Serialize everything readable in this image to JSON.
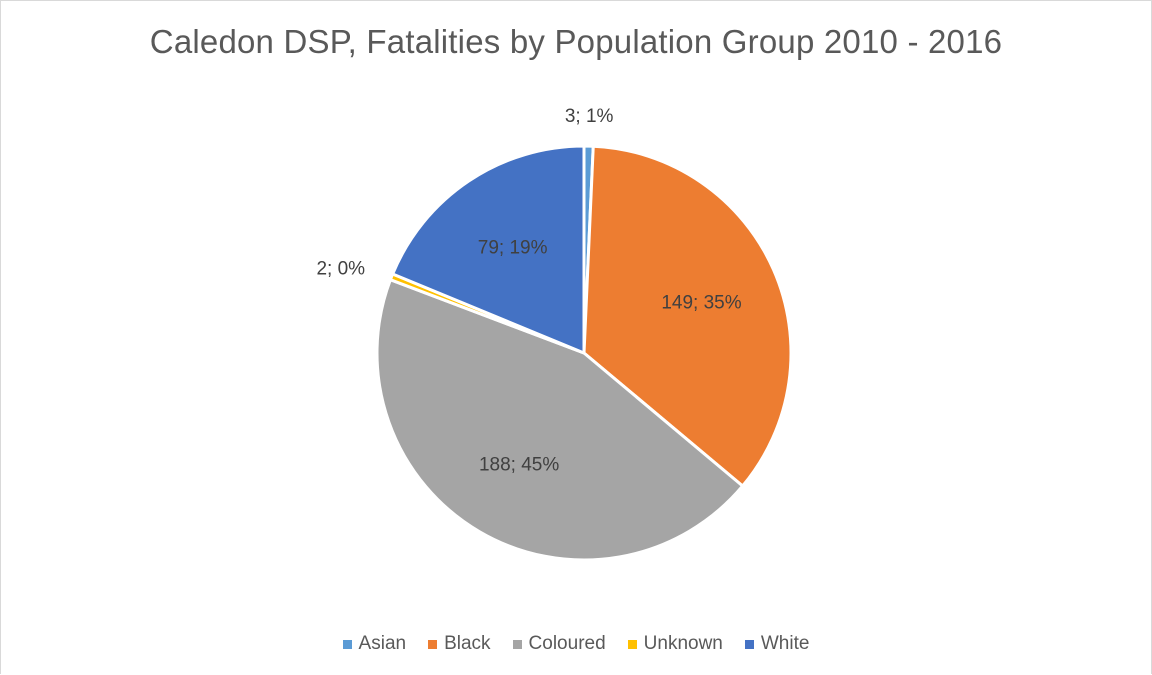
{
  "chart_data": {
    "type": "pie",
    "title": "Caledon DSP, Fatalities by Population Group 2010 - 2016",
    "categories": [
      "Asian",
      "Black",
      "Coloured",
      "Unknown",
      "White"
    ],
    "values": [
      3,
      149,
      188,
      2,
      79
    ],
    "labels": [
      "3; 1%",
      "149; 35%",
      "188; 45%",
      "2; 0%",
      "79; 19%"
    ],
    "colors": [
      "#5b9bd5",
      "#ed7d31",
      "#a5a5a5",
      "#ffc000",
      "#4472c4"
    ],
    "legend_position": "bottom"
  }
}
